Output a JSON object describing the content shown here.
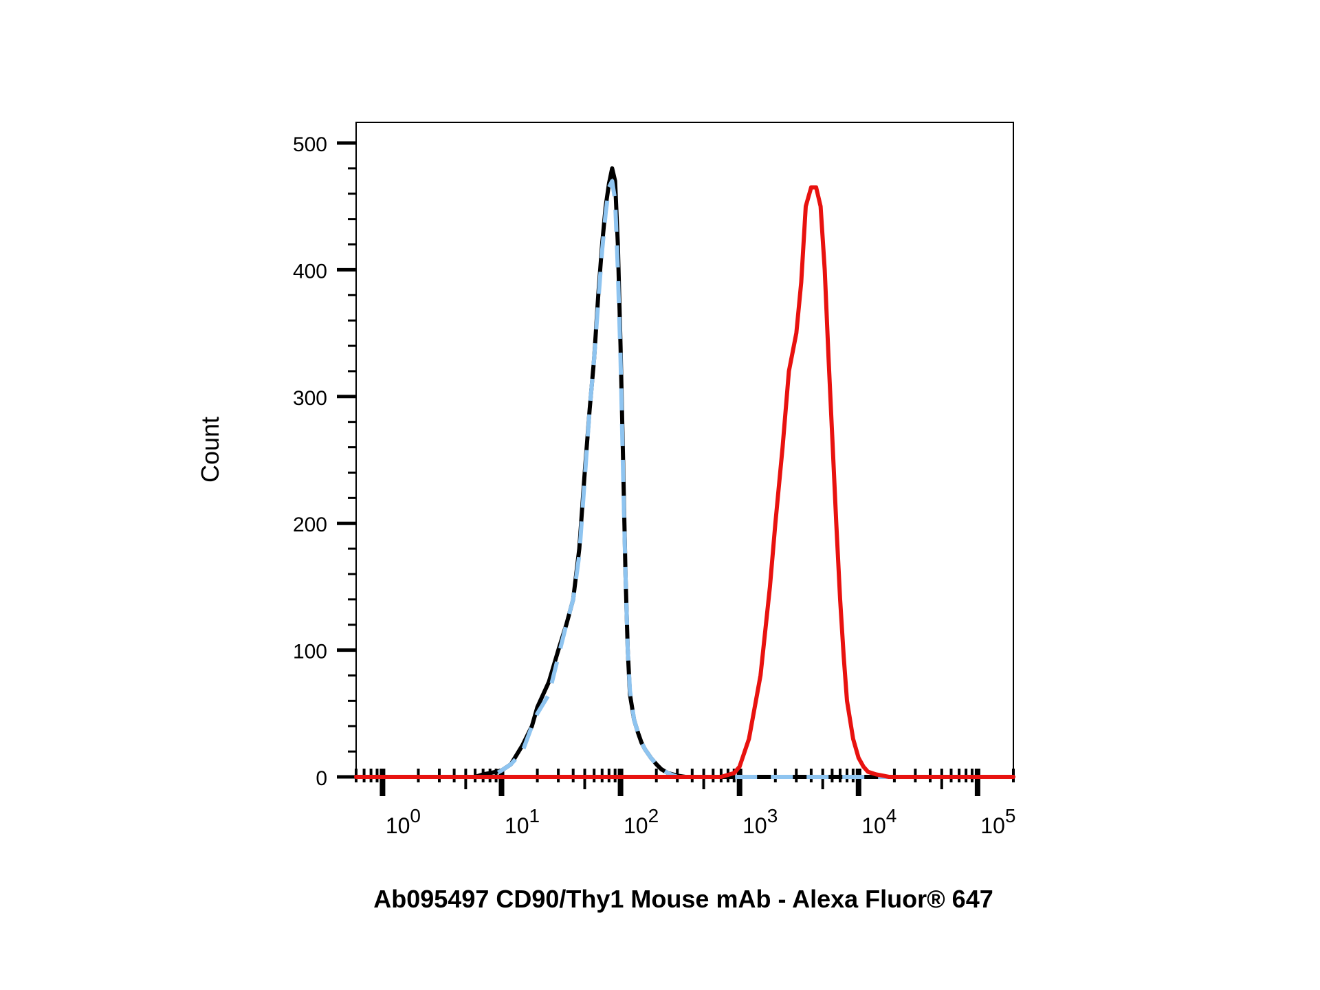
{
  "chart_data": {
    "type": "line",
    "title": "",
    "xlabel": "Ab095497 CD90/Thy1 Mouse mAb - Alexa Fluor® 647",
    "ylabel": "Count",
    "x_scale": "log",
    "xlim": [
      0.6,
      200000
    ],
    "ylim": [
      0,
      500
    ],
    "grid": false,
    "legend": "none",
    "y_ticks": [
      {
        "value": 0,
        "label": "0"
      },
      {
        "value": 100,
        "label": "100"
      },
      {
        "value": 200,
        "label": "200"
      },
      {
        "value": 300,
        "label": "300"
      },
      {
        "value": 400,
        "label": "400"
      },
      {
        "value": 500,
        "label": "500"
      }
    ],
    "x_ticks": [
      {
        "value": 1,
        "base": "10",
        "exp": "0"
      },
      {
        "value": 10,
        "base": "10",
        "exp": "1"
      },
      {
        "value": 100,
        "base": "10",
        "exp": "2"
      },
      {
        "value": 1000,
        "base": "10",
        "exp": "3"
      },
      {
        "value": 10000,
        "base": "10",
        "exp": "4"
      },
      {
        "value": 100000,
        "base": "10",
        "exp": "5"
      }
    ],
    "series": [
      {
        "color": "#000000",
        "style": "solid",
        "x": [
          0.6,
          6,
          7,
          8,
          9,
          10,
          12,
          15,
          18,
          20,
          25,
          30,
          35,
          40,
          45,
          50,
          55,
          60,
          65,
          70,
          75,
          80,
          85,
          90,
          95,
          100,
          105,
          110,
          115,
          120,
          130,
          140,
          150,
          160,
          180,
          200,
          220,
          250,
          300,
          350,
          400,
          500,
          200000
        ],
        "y": [
          0,
          0,
          2,
          3,
          4,
          5,
          10,
          25,
          40,
          55,
          75,
          100,
          120,
          140,
          180,
          240,
          290,
          330,
          380,
          420,
          450,
          468,
          480,
          470,
          420,
          340,
          250,
          160,
          100,
          65,
          45,
          35,
          27,
          22,
          15,
          10,
          6,
          3,
          1,
          0,
          0,
          0,
          0
        ]
      },
      {
        "color": "#8ec4f0",
        "style": "dashed",
        "x": [
          0.6,
          8,
          10,
          12,
          15,
          18,
          20,
          25,
          30,
          35,
          40,
          45,
          50,
          55,
          60,
          65,
          70,
          75,
          80,
          85,
          90,
          95,
          100,
          105,
          110,
          115,
          120,
          130,
          140,
          150,
          160,
          180,
          200,
          220,
          250,
          300,
          200000
        ],
        "y": [
          0,
          0,
          5,
          10,
          20,
          40,
          50,
          65,
          95,
          120,
          140,
          175,
          235,
          290,
          330,
          375,
          415,
          445,
          465,
          470,
          455,
          400,
          330,
          240,
          160,
          100,
          68,
          45,
          35,
          27,
          22,
          15,
          10,
          6,
          3,
          0,
          0
        ]
      },
      {
        "color": "#e8120f",
        "style": "solid",
        "x": [
          0.6,
          700,
          900,
          1000,
          1200,
          1500,
          1800,
          2000,
          2300,
          2600,
          3000,
          3300,
          3600,
          4000,
          4400,
          4800,
          5200,
          5600,
          6000,
          6500,
          7000,
          7500,
          8000,
          9000,
          10000,
          11000,
          12000,
          14000,
          16000,
          18000,
          20000,
          200000
        ],
        "y": [
          0,
          0,
          3,
          8,
          30,
          80,
          150,
          200,
          260,
          320,
          350,
          390,
          450,
          465,
          465,
          450,
          400,
          330,
          270,
          200,
          140,
          95,
          60,
          30,
          15,
          8,
          4,
          2,
          1,
          0,
          0,
          0
        ]
      }
    ]
  }
}
